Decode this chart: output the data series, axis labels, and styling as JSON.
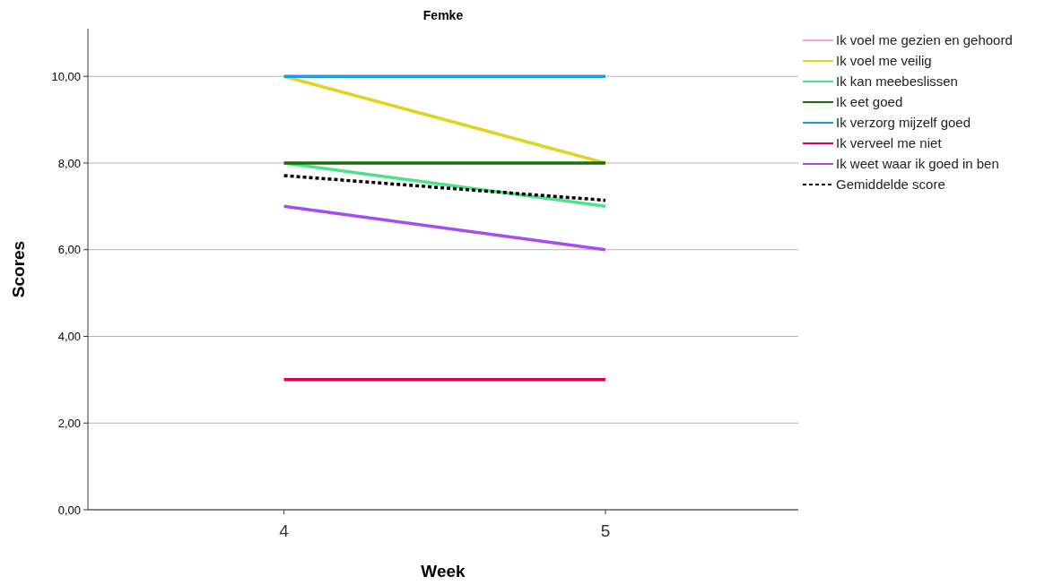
{
  "chart_data": {
    "type": "line",
    "title": "Femke",
    "xlabel": "Week",
    "ylabel": "Scores",
    "x": [
      4,
      5
    ],
    "xlim": [
      3.39,
      5.6
    ],
    "xticks": [
      4,
      5
    ],
    "ylim": [
      0,
      11.1
    ],
    "yticks": [
      {
        "value": 0,
        "label": "0,00"
      },
      {
        "value": 2,
        "label": "2,00"
      },
      {
        "value": 4,
        "label": "4,00"
      },
      {
        "value": 6,
        "label": "6,00"
      },
      {
        "value": 8,
        "label": "8,00"
      },
      {
        "value": 10,
        "label": "10,00"
      }
    ],
    "grid": "y",
    "legend": "top right",
    "series": [
      {
        "name": "Ik voel me gezien en gehoord",
        "color": "#f4a7b9",
        "values": [
          null,
          null
        ]
      },
      {
        "name": "Ik voel me veilig",
        "color": "#e3d21e",
        "values": [
          10,
          8
        ]
      },
      {
        "name": "Ik kan meebeslissen",
        "color": "#4be38a",
        "values": [
          8,
          7
        ]
      },
      {
        "name": "Ik eet goed",
        "color": "#1a6e0a",
        "values": [
          8,
          8
        ]
      },
      {
        "name": "Ik verzorg mijzelf goed",
        "color": "#1e9be0",
        "values": [
          10,
          10
        ]
      },
      {
        "name": "Ik verveel me niet",
        "color": "#e0004a",
        "values": [
          3,
          3
        ]
      },
      {
        "name": "Ik weet waar ik goed in ben",
        "color": "#a64cf0",
        "values": [
          7,
          6
        ]
      },
      {
        "name": "Gemiddelde score",
        "color": "#000000",
        "values": [
          7.71,
          7.14
        ],
        "line_style": "dashed"
      }
    ]
  }
}
